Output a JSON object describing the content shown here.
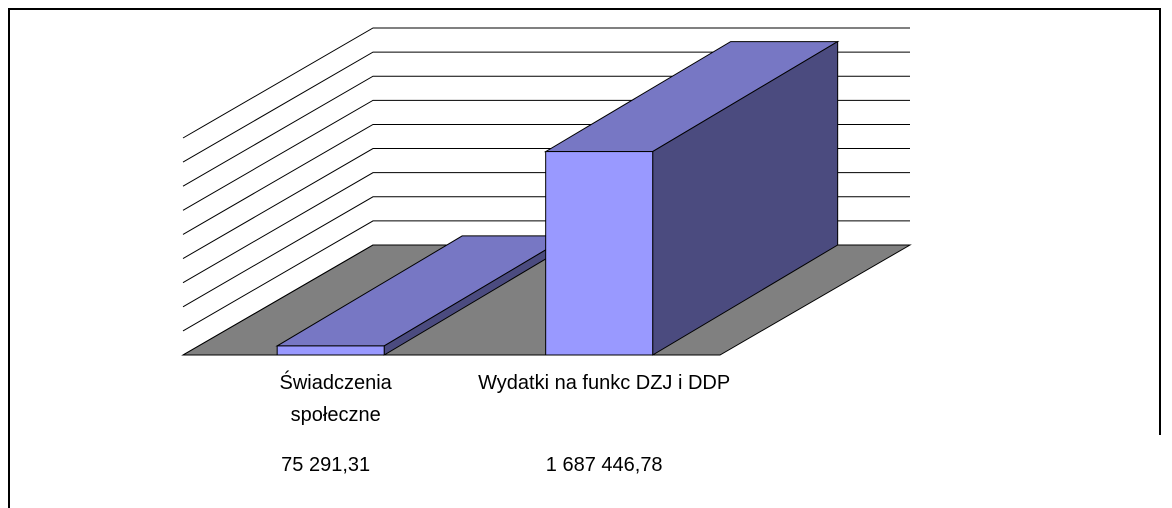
{
  "chart_data": {
    "type": "bar3d",
    "categories": [
      "Świadczenia społeczne",
      "Wydatki na funkc DZJ i DDP"
    ],
    "values": [
      75291.31,
      1687446.78
    ],
    "value_labels": [
      "75 291,31",
      "1 687 446,78"
    ],
    "colors": {
      "front": "#9999ff",
      "top": "#7777c4",
      "side": "#4b4b7f",
      "floor": "#808080"
    },
    "ylim": [
      0,
      1800000
    ],
    "yticks": [
      0,
      200000,
      400000,
      600000,
      800000,
      1000000,
      1200000,
      1400000,
      1600000,
      1800000
    ],
    "grid": true
  }
}
